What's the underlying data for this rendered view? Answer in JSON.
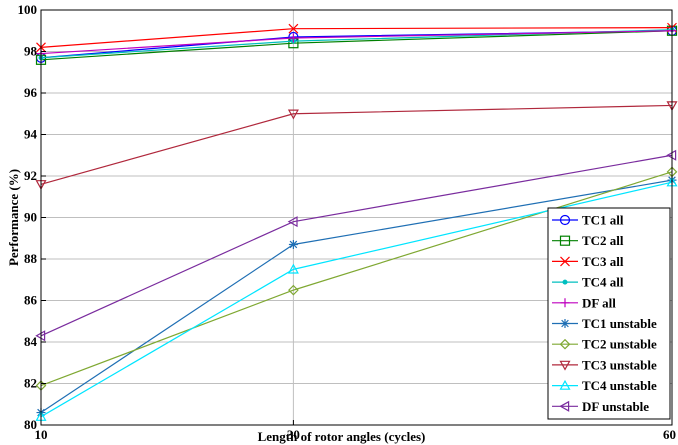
{
  "chart_data": {
    "type": "line",
    "xlabel": "Length of rotor angles (cycles)",
    "ylabel": "Performance (%)",
    "x": [
      10,
      30,
      60
    ],
    "xlim": [
      10,
      60
    ],
    "ylim": [
      80,
      100
    ],
    "xticks": [
      "10",
      "30",
      "60"
    ],
    "yticks": [
      "80",
      "82",
      "84",
      "86",
      "88",
      "90",
      "92",
      "94",
      "96",
      "98",
      "100"
    ],
    "grid": true,
    "legend_position": "bottom-right",
    "series": [
      {
        "name": "TC1 all",
        "values": [
          97.7,
          98.7,
          99.0
        ],
        "color": "#0000ff",
        "marker": "circle"
      },
      {
        "name": "TC2 all",
        "values": [
          97.6,
          98.4,
          99.0
        ],
        "color": "#008000",
        "marker": "square"
      },
      {
        "name": "TC3 all",
        "values": [
          98.2,
          99.1,
          99.15
        ],
        "color": "#ff0000",
        "marker": "x"
      },
      {
        "name": "TC4 all",
        "values": [
          97.7,
          98.5,
          99.05
        ],
        "color": "#00bfbf",
        "marker": "dot"
      },
      {
        "name": "DF all",
        "values": [
          97.9,
          98.65,
          99.0
        ],
        "color": "#bf00bf",
        "marker": "plus"
      },
      {
        "name": "TC1 unstable",
        "values": [
          80.6,
          88.7,
          91.8
        ],
        "color": "#1f6fb4",
        "marker": "star"
      },
      {
        "name": "TC2 unstable",
        "values": [
          81.9,
          86.5,
          92.2
        ],
        "color": "#7fa832",
        "marker": "diamond"
      },
      {
        "name": "TC3 unstable",
        "values": [
          91.6,
          95.0,
          95.4
        ],
        "color": "#b0283c",
        "marker": "triangle-down"
      },
      {
        "name": "TC4 unstable",
        "values": [
          80.4,
          87.5,
          91.7
        ],
        "color": "#00e5ff",
        "marker": "triangle-up"
      },
      {
        "name": "DF unstable",
        "values": [
          84.3,
          89.8,
          93.0
        ],
        "color": "#7a2c9e",
        "marker": "triangle-left"
      }
    ]
  }
}
